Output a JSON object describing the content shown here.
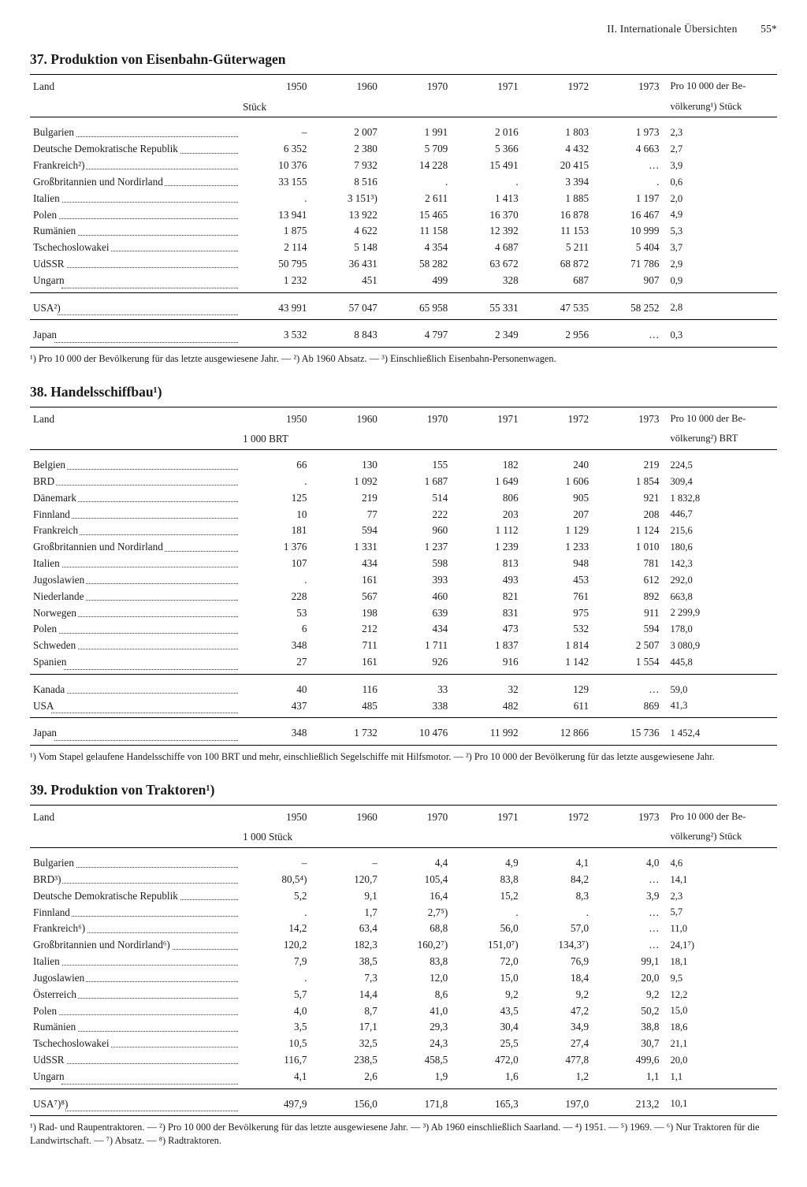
{
  "runningHead": {
    "section": "II. Internationale Übersichten",
    "pageNumber": "55*"
  },
  "years": [
    "1950",
    "1960",
    "1970",
    "1971",
    "1972",
    "1973"
  ],
  "lastcol_header": "Pro 10 000 der Be-",
  "tables": [
    {
      "title": "37. Produktion von Eisenbahn-Güterwagen",
      "country_header": "Land",
      "unit_label": "Stück",
      "lastcol_sub": "völkerung¹) Stück",
      "blocks": [
        [
          {
            "c": "Bulgarien",
            "v": [
              "–",
              "2 007",
              "1 991",
              "2 016",
              "1 803",
              "1 973",
              "2,3"
            ]
          },
          {
            "c": "Deutsche Demokratische Republik",
            "v": [
              "6 352",
              "2 380",
              "5 709",
              "5 366",
              "4 432",
              "4 663",
              "2,7"
            ]
          },
          {
            "c": "Frankreich²)",
            "v": [
              "10 376",
              "7 932",
              "14 228",
              "15 491",
              "20 415",
              "…",
              "3,9"
            ]
          },
          {
            "c": "Großbritannien und Nordirland",
            "v": [
              "33 155",
              "8 516",
              ".",
              ".",
              "3 394",
              ".",
              "0,6"
            ]
          },
          {
            "c": "Italien",
            "v": [
              ".",
              "3 151³)",
              "2 611",
              "1 413",
              "1 885",
              "1 197",
              "2,0"
            ]
          },
          {
            "c": "Polen",
            "v": [
              "13 941",
              "13 922",
              "15 465",
              "16 370",
              "16 878",
              "16 467",
              "4,9"
            ]
          },
          {
            "c": "Rumänien",
            "v": [
              "1 875",
              "4 622",
              "11 158",
              "12 392",
              "11 153",
              "10 999",
              "5,3"
            ]
          },
          {
            "c": "Tschechoslowakei",
            "v": [
              "2 114",
              "5 148",
              "4 354",
              "4 687",
              "5 211",
              "5 404",
              "3,7"
            ]
          },
          {
            "c": "UdSSR",
            "v": [
              "50 795",
              "36 431",
              "58 282",
              "63 672",
              "68 872",
              "71 786",
              "2,9"
            ]
          },
          {
            "c": "Ungarn",
            "v": [
              "1 232",
              "451",
              "499",
              "328",
              "687",
              "907",
              "0,9"
            ]
          }
        ],
        [
          {
            "c": "USA²)",
            "v": [
              "43 991",
              "57 047",
              "65 958",
              "55 331",
              "47 535",
              "58 252",
              "2,8"
            ]
          }
        ],
        [
          {
            "c": "Japan",
            "v": [
              "3 532",
              "8 843",
              "4 797",
              "2 349",
              "2 956",
              "…",
              "0,3"
            ]
          }
        ]
      ],
      "footnote": "¹) Pro 10 000 der Bevölkerung für das letzte ausgewiesene Jahr. — ²) Ab 1960 Absatz. — ³) Einschließlich Eisenbahn-Personenwagen."
    },
    {
      "title": "38. Handelsschiffbau¹)",
      "country_header": "Land",
      "unit_label": "1 000 BRT",
      "lastcol_sub": "völkerung²) BRT",
      "blocks": [
        [
          {
            "c": "Belgien",
            "v": [
              "66",
              "130",
              "155",
              "182",
              "240",
              "219",
              "224,5"
            ]
          },
          {
            "c": "BRD",
            "v": [
              ".",
              "1 092",
              "1 687",
              "1 649",
              "1 606",
              "1 854",
              "309,4"
            ]
          },
          {
            "c": "Dänemark",
            "v": [
              "125",
              "219",
              "514",
              "806",
              "905",
              "921",
              "1 832,8"
            ]
          },
          {
            "c": "Finnland",
            "v": [
              "10",
              "77",
              "222",
              "203",
              "207",
              "208",
              "446,7"
            ]
          },
          {
            "c": "Frankreich",
            "v": [
              "181",
              "594",
              "960",
              "1 112",
              "1 129",
              "1 124",
              "215,6"
            ]
          },
          {
            "c": "Großbritannien und Nordirland",
            "v": [
              "1 376",
              "1 331",
              "1 237",
              "1 239",
              "1 233",
              "1 010",
              "180,6"
            ]
          },
          {
            "c": "Italien",
            "v": [
              "107",
              "434",
              "598",
              "813",
              "948",
              "781",
              "142,3"
            ]
          },
          {
            "c": "Jugoslawien",
            "v": [
              ".",
              "161",
              "393",
              "493",
              "453",
              "612",
              "292,0"
            ]
          },
          {
            "c": "Niederlande",
            "v": [
              "228",
              "567",
              "460",
              "821",
              "761",
              "892",
              "663,8"
            ]
          },
          {
            "c": "Norwegen",
            "v": [
              "53",
              "198",
              "639",
              "831",
              "975",
              "911",
              "2 299,9"
            ]
          },
          {
            "c": "Polen",
            "v": [
              "6",
              "212",
              "434",
              "473",
              "532",
              "594",
              "178,0"
            ]
          },
          {
            "c": "Schweden",
            "v": [
              "348",
              "711",
              "1 711",
              "1 837",
              "1 814",
              "2 507",
              "3 080,9"
            ]
          },
          {
            "c": "Spanien",
            "v": [
              "27",
              "161",
              "926",
              "916",
              "1 142",
              "1 554",
              "445,8"
            ]
          }
        ],
        [
          {
            "c": "Kanada",
            "v": [
              "40",
              "116",
              "33",
              "32",
              "129",
              "…",
              "59,0"
            ]
          },
          {
            "c": "USA",
            "v": [
              "437",
              "485",
              "338",
              "482",
              "611",
              "869",
              "41,3"
            ]
          }
        ],
        [
          {
            "c": "Japan",
            "v": [
              "348",
              "1 732",
              "10 476",
              "11 992",
              "12 866",
              "15 736",
              "1 452,4"
            ]
          }
        ]
      ],
      "footnote": "¹) Vom Stapel gelaufene Handelsschiffe von 100 BRT und mehr, einschließlich Segelschiffe mit Hilfsmotor. — ²) Pro 10 000 der Bevölkerung für das letzte ausgewiesene Jahr."
    },
    {
      "title": "39. Produktion von Traktoren¹)",
      "country_header": "Land",
      "unit_label": "1 000 Stück",
      "lastcol_sub": "völkerung²) Stück",
      "blocks": [
        [
          {
            "c": "Bulgarien",
            "v": [
              "–",
              "–",
              "4,4",
              "4,9",
              "4,1",
              "4,0",
              "4,6"
            ]
          },
          {
            "c": "BRD³)",
            "v": [
              "80,5⁴)",
              "120,7",
              "105,4",
              "83,8",
              "84,2",
              "…",
              "14,1"
            ]
          },
          {
            "c": "Deutsche Demokratische Republik",
            "v": [
              "5,2",
              "9,1",
              "16,4",
              "15,2",
              "8,3",
              "3,9",
              "2,3"
            ]
          },
          {
            "c": "Finnland",
            "v": [
              ".",
              "1,7",
              "2,7⁵)",
              ".",
              ".",
              "…",
              "5,7"
            ]
          },
          {
            "c": "Frankreich⁶)",
            "v": [
              "14,2",
              "63,4",
              "68,8",
              "56,0",
              "57,0",
              "…",
              "11,0"
            ]
          },
          {
            "c": "Großbritannien und Nordirland⁶)",
            "v": [
              "120,2",
              "182,3",
              "160,2⁷)",
              "151,0⁷)",
              "134,3⁷)",
              "…",
              "24,1⁷)"
            ]
          },
          {
            "c": "Italien",
            "v": [
              "7,9",
              "38,5",
              "83,8",
              "72,0",
              "76,9",
              "99,1",
              "18,1"
            ]
          },
          {
            "c": "Jugoslawien",
            "v": [
              ".",
              "7,3",
              "12,0",
              "15,0",
              "18,4",
              "20,0",
              "9,5"
            ]
          },
          {
            "c": "Österreich",
            "v": [
              "5,7",
              "14,4",
              "8,6",
              "9,2",
              "9,2",
              "9,2",
              "12,2"
            ]
          },
          {
            "c": "Polen",
            "v": [
              "4,0",
              "8,7",
              "41,0",
              "43,5",
              "47,2",
              "50,2",
              "15,0"
            ]
          },
          {
            "c": "Rumänien",
            "v": [
              "3,5",
              "17,1",
              "29,3",
              "30,4",
              "34,9",
              "38,8",
              "18,6"
            ]
          },
          {
            "c": "Tschechoslowakei",
            "v": [
              "10,5",
              "32,5",
              "24,3",
              "25,5",
              "27,4",
              "30,7",
              "21,1"
            ]
          },
          {
            "c": "UdSSR",
            "v": [
              "116,7",
              "238,5",
              "458,5",
              "472,0",
              "477,8",
              "499,6",
              "20,0"
            ]
          },
          {
            "c": "Ungarn",
            "v": [
              "4,1",
              "2,6",
              "1,9",
              "1,6",
              "1,2",
              "1,1",
              "1,1"
            ]
          }
        ],
        [
          {
            "c": "USA⁷)⁸)",
            "v": [
              "497,9",
              "156,0",
              "171,8",
              "165,3",
              "197,0",
              "213,2",
              "10,1"
            ]
          }
        ]
      ],
      "footnote": "¹) Rad- und Raupentraktoren. — ²) Pro 10 000 der Bevölkerung für das letzte ausgewiesene Jahr. — ³) Ab 1960 einschließlich Saarland. — ⁴) 1951. — ⁵) 1969. — ⁶) Nur Traktoren für die Landwirtschaft. — ⁷) Absatz. — ⁸) Radtraktoren."
    }
  ]
}
